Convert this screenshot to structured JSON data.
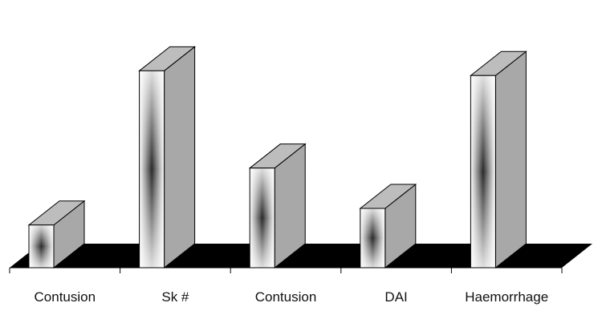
{
  "chart_data": {
    "type": "bar",
    "style": "3d-column",
    "categories": [
      "Contusion",
      "Sk #",
      "Contusion",
      "DAI",
      "Haemorrhage"
    ],
    "values": [
      18,
      83,
      42,
      25,
      81
    ],
    "ylim": [
      0,
      100
    ],
    "grid": false,
    "legend": "none",
    "title": "",
    "xlabel": "",
    "ylabel": "",
    "colors": {
      "front_edge": "#ffffff",
      "front_center": "#2a2a2a",
      "side": "#a8a8a8",
      "top": "#bdbdbd",
      "floor": "#000000",
      "outline": "#000000"
    }
  }
}
